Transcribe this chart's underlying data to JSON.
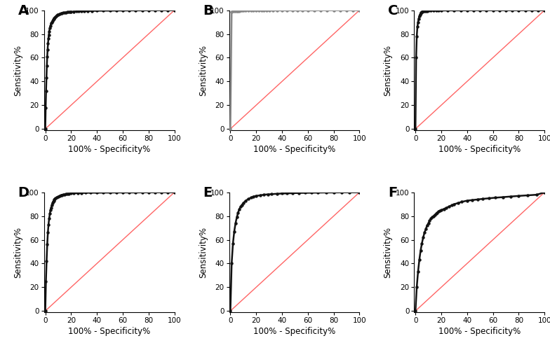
{
  "panels": [
    "A",
    "B",
    "C",
    "D",
    "E",
    "F"
  ],
  "xlabel": "100% - Specificity%",
  "ylabel": "Sensitivity%",
  "xticks": [
    0,
    20,
    40,
    60,
    80,
    100
  ],
  "yticks": [
    0,
    20,
    40,
    60,
    80,
    100
  ],
  "xlim": [
    -1,
    100
  ],
  "ylim": [
    -1,
    100
  ],
  "diagonal_color": "#FF6666",
  "curve_color": "#111111",
  "curve_linewidth": 1.8,
  "marker": "o",
  "markersize": 2.2,
  "panel_B_marker_color": "#888888",
  "roc_A": {
    "x": [
      0,
      0.3,
      0.6,
      0.9,
      1.2,
      1.5,
      1.8,
      2.1,
      2.4,
      2.7,
      3.0,
      3.5,
      4.0,
      4.5,
      5.0,
      5.5,
      6.0,
      6.5,
      7.0,
      7.5,
      8.0,
      8.5,
      9.0,
      9.5,
      10,
      11,
      12,
      13,
      14,
      15,
      16,
      17,
      18,
      19,
      20,
      22,
      24,
      26,
      28,
      30,
      33,
      36,
      40,
      45,
      50,
      55,
      60,
      65,
      70,
      75,
      80,
      85,
      90,
      95,
      100
    ],
    "y": [
      0,
      18,
      32,
      43,
      53,
      61,
      67,
      72,
      76,
      79,
      82,
      85,
      87,
      89,
      90,
      91,
      92,
      93,
      93.5,
      94,
      94.5,
      95,
      95.5,
      96,
      96.5,
      97,
      97.2,
      97.5,
      97.8,
      98,
      98.2,
      98.4,
      98.5,
      98.6,
      98.7,
      98.9,
      99,
      99.1,
      99.2,
      99.3,
      99.4,
      99.5,
      99.6,
      99.7,
      99.7,
      99.8,
      99.8,
      99.9,
      99.9,
      99.9,
      100,
      100,
      100,
      100,
      100
    ]
  },
  "roc_B": {
    "x": [
      0,
      1,
      2,
      3,
      4,
      5,
      6,
      7,
      8,
      9,
      10,
      12,
      14,
      16,
      18,
      20,
      22,
      24,
      26,
      28,
      30,
      33,
      36,
      40,
      44,
      48,
      52,
      56,
      60,
      65,
      70,
      75,
      80,
      85,
      90,
      95,
      100
    ],
    "y": [
      0,
      98.5,
      99,
      99.2,
      99.3,
      99.4,
      99.5,
      99.5,
      99.6,
      99.6,
      99.6,
      99.7,
      99.7,
      99.7,
      99.7,
      99.8,
      99.8,
      99.8,
      99.8,
      99.8,
      99.8,
      99.9,
      99.9,
      99.9,
      99.9,
      99.9,
      99.9,
      99.9,
      99.9,
      99.9,
      100,
      100,
      100,
      100,
      100,
      100,
      100
    ]
  },
  "roc_C": {
    "x": [
      0,
      0.5,
      1.0,
      1.5,
      2.0,
      2.5,
      3.0,
      3.5,
      4.0,
      4.5,
      5.0,
      5.5,
      6.0,
      7,
      8,
      9,
      10,
      12,
      14,
      16,
      18,
      20,
      25,
      30,
      35,
      40,
      45,
      50,
      55,
      60,
      65,
      70,
      75,
      80,
      85,
      90,
      95,
      100
    ],
    "y": [
      0,
      60,
      78,
      86,
      90,
      93,
      95,
      96.5,
      97.5,
      98,
      98.5,
      98.8,
      99,
      99.2,
      99.4,
      99.5,
      99.6,
      99.7,
      99.7,
      99.8,
      99.8,
      99.8,
      99.9,
      99.9,
      99.9,
      100,
      100,
      100,
      100,
      100,
      100,
      100,
      100,
      100,
      100,
      100,
      100,
      100
    ]
  },
  "roc_D": {
    "x": [
      0,
      0.5,
      1,
      1.5,
      2,
      2.5,
      3,
      3.5,
      4,
      4.5,
      5,
      5.5,
      6,
      6.5,
      7,
      7.5,
      8,
      9,
      10,
      11,
      12,
      13,
      14,
      15,
      16,
      17,
      18,
      20,
      22,
      25,
      28,
      31,
      35,
      40,
      45,
      50,
      55,
      60,
      65,
      70,
      75,
      80,
      85,
      90,
      95,
      100
    ],
    "y": [
      0,
      25,
      42,
      56,
      66,
      73,
      78,
      82,
      85,
      87,
      89,
      91,
      92,
      93,
      94,
      94.5,
      95,
      96,
      96.5,
      97,
      97.5,
      97.8,
      98,
      98.3,
      98.5,
      98.7,
      98.8,
      99,
      99.2,
      99.4,
      99.5,
      99.6,
      99.7,
      99.7,
      99.8,
      99.8,
      99.9,
      99.9,
      99.9,
      99.9,
      100,
      100,
      100,
      100,
      100,
      100
    ]
  },
  "roc_E": {
    "x": [
      0,
      1,
      2,
      3,
      4,
      5,
      6,
      7,
      8,
      9,
      10,
      12,
      14,
      16,
      18,
      20,
      23,
      26,
      29,
      32,
      36,
      40,
      44,
      48,
      53,
      58,
      63,
      68,
      74,
      80,
      86,
      92,
      100
    ],
    "y": [
      0,
      40,
      57,
      67,
      74,
      79,
      83,
      86,
      88,
      89.5,
      91,
      93,
      94.5,
      95.5,
      96.5,
      97,
      97.5,
      98,
      98.3,
      98.5,
      98.8,
      99,
      99.2,
      99.3,
      99.5,
      99.6,
      99.7,
      99.8,
      99.9,
      99.9,
      100,
      100,
      100
    ]
  },
  "roc_F": {
    "x": [
      0,
      1,
      2,
      3,
      4,
      5,
      6,
      7,
      8,
      9,
      10,
      11,
      12,
      13,
      14,
      15,
      16,
      17,
      18,
      19,
      20,
      22,
      24,
      26,
      28,
      30,
      33,
      36,
      40,
      44,
      48,
      52,
      57,
      62,
      68,
      74,
      80,
      87,
      94,
      100
    ],
    "y": [
      0,
      20,
      33,
      43,
      51,
      57,
      62,
      66,
      69,
      72,
      74,
      76,
      78,
      79,
      80,
      81,
      82,
      83,
      84,
      84.5,
      85,
      86,
      87,
      88,
      89,
      90,
      91,
      92,
      93,
      93.5,
      94,
      94.5,
      95,
      95.5,
      96,
      96.5,
      97,
      97.5,
      98,
      100
    ]
  }
}
